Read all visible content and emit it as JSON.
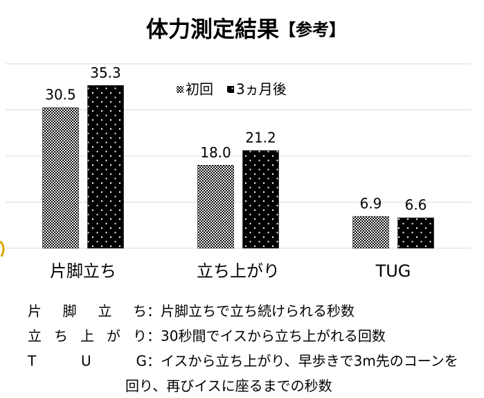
{
  "chart_data": {
    "type": "bar",
    "title": "体力測定結果",
    "title_note": "【参考】",
    "categories": [
      "片脚立ち",
      "立ち上がり",
      "TUG"
    ],
    "series": [
      {
        "name": "初回",
        "color": "#000000",
        "pattern": "checker",
        "values": [
          30.5,
          18.0,
          6.9
        ],
        "value_labels": [
          "30.5",
          "18.0",
          "6.9"
        ]
      },
      {
        "name": "3ヵ月後",
        "color": "#000000",
        "pattern": "dots",
        "values": [
          35.3,
          21.2,
          6.6
        ],
        "value_labels": [
          "35.3",
          "21.2",
          "6.6"
        ]
      }
    ],
    "ylim": [
      0,
      40
    ],
    "yticks": [
      0,
      10,
      20,
      30,
      40
    ],
    "grid": true,
    "legend": "top"
  },
  "notes": {
    "separator": "：",
    "items": [
      {
        "term": "片 脚 立 ち",
        "desc": [
          "片脚立ちで立ち続けられる秒数"
        ]
      },
      {
        "term": "立ち上がり",
        "desc": [
          "30秒間でイスから立ち上がれる回数"
        ]
      },
      {
        "term": "T　U　G",
        "desc": [
          "イスから立ち上がり、早歩きで3m先のコーンを",
          "回り、再びイスに座るまでの秒数"
        ]
      }
    ]
  }
}
